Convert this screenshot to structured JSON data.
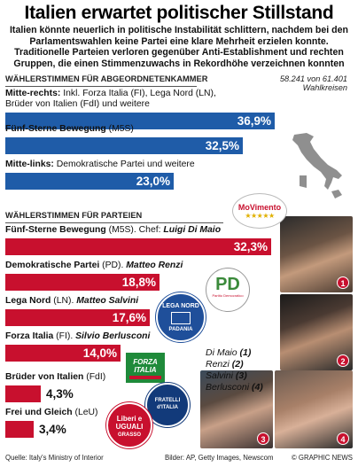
{
  "title": "Italien erwartet politischer Stillstand",
  "subtitle": "Italien könnte neuerlich in politische Instabilität schlittern, nachdem bei den Parlamentswahlen keine Partei eine klare Mehrheit erzielen konnte. Traditionelle Parteien verloren gegenüber Anti-Establishment und rechten Gruppen, die einen Stimmenzuwachs in Rekordhöhe verzeichnen konnten",
  "chamber": {
    "header": "WÄHLERSTIMMEN FÜR ABGEORDNETENKAMMER",
    "districts": "58.241 von 61.401",
    "districts_label": "Wahlkreisen"
  },
  "parties_header": "WÄHLERSTIMMEN FÜR PARTEIEN",
  "chart_data": [
    {
      "type": "bar",
      "title": "WÄHLERSTIMMEN FÜR ABGEORDNETENKAMMER",
      "categories": [
        "Mitte-rechts",
        "Fünf-Sterne Bewegung",
        "Mitte-links"
      ],
      "labels": [
        {
          "name": "Mitte-rechts:",
          "detail": " Inkl.  Forza Italia (FI), Lega Nord (LN),",
          "detail2": "Brüder von Italien (FdI) und weitere"
        },
        {
          "name": "Fünf-Sterne Bewegung",
          "detail": " (M5S)",
          "detail2": ""
        },
        {
          "name": "Mitte-links:",
          "detail": " Demokratische  Partei und weitere",
          "detail2": ""
        }
      ],
      "values": [
        36.9,
        32.5,
        23.0
      ],
      "value_labels": [
        "36,9%",
        "32,5%",
        "23,0%"
      ],
      "color": "#1f5ca8",
      "xlim": [
        0,
        37
      ]
    },
    {
      "type": "bar",
      "title": "WÄHLERSTIMMEN FÜR PARTEIEN",
      "categories": [
        "Fünf-Sterne Bewegung",
        "Demokratische Partei",
        "Lega Nord",
        "Forza Italia",
        "Brüder von Italien",
        "Frei und Gleich"
      ],
      "labels": [
        {
          "name": "Fünf-Sterne Bewegung",
          "detail": " (M5S). Chef: ",
          "leader": "Luigi Di Maio"
        },
        {
          "name": "Demokratische Partei",
          "detail": " (PD). ",
          "leader": "Matteo Renzi"
        },
        {
          "name": "Lega Nord",
          "detail": " (LN). ",
          "leader": "Matteo Salvini"
        },
        {
          "name": "Forza Italia",
          "detail": " (FI). ",
          "leader": "Silvio Berlusconi"
        },
        {
          "name": "Brüder von Italien",
          "detail": " (FdI)",
          "leader": ""
        },
        {
          "name": "Frei und Gleich",
          "detail": " (LeU)",
          "leader": ""
        }
      ],
      "values": [
        32.3,
        18.8,
        17.6,
        14.0,
        4.3,
        3.4
      ],
      "value_labels": [
        "32,3%",
        "18,8%",
        "17,6%",
        "14,0%",
        "4,3%",
        "3,4%"
      ],
      "color": "#c8102e",
      "xlim": [
        0,
        33
      ]
    }
  ],
  "legend": [
    {
      "name": "Di Maio",
      "num": "(1)"
    },
    {
      "name": "Renzi",
      "num": "(2)"
    },
    {
      "name": "Salvini",
      "num": "(3)"
    },
    {
      "name": "Berlusconi",
      "num": "(4)"
    }
  ],
  "photo_numbers": [
    "1",
    "2",
    "3",
    "4"
  ],
  "logos": {
    "m5s": "MoVimento",
    "pd": "PD",
    "pd_sub": "Partito Democratico",
    "lega": "LEGA NORD",
    "lega_sub": "PADANIA",
    "fi": "FORZA ITALIA",
    "fdi": "FRATELLI d'ITALIA",
    "leu": "Liberi e UGUALI",
    "leu_sub": "GRASSO"
  },
  "footer": {
    "source": "Quelle: Italy's Ministry of Interior",
    "images": "Bilder: AP, Getty Images, Newscom",
    "credit": "© GRAPHIC NEWS"
  },
  "colors": {
    "blue": "#1f5ca8",
    "red": "#c8102e"
  }
}
